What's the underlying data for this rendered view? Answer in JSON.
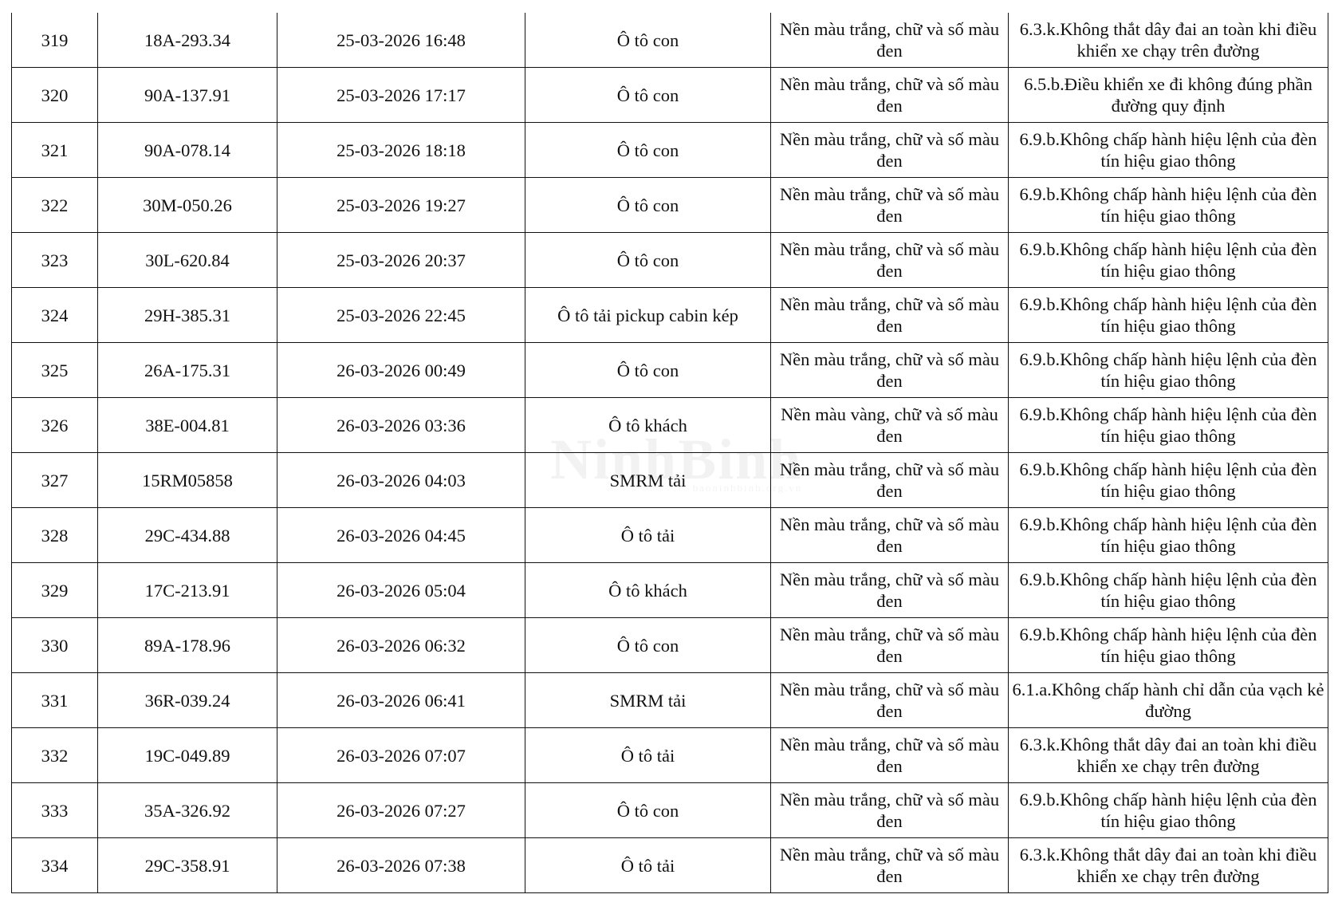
{
  "rows": [
    [
      "319",
      "18A-293.34",
      "25-03-2026 16:48",
      "Ô tô con",
      "Nền màu trắng, chữ và số màu đen",
      "6.3.k.Không thắt dây đai an toàn khi điều khiển xe chạy trên đường"
    ],
    [
      "320",
      "90A-137.91",
      "25-03-2026 17:17",
      "Ô tô con",
      "Nền màu trắng, chữ và số màu đen",
      "6.5.b.Điều khiển xe đi không đúng phần đường quy định"
    ],
    [
      "321",
      "90A-078.14",
      "25-03-2026 18:18",
      "Ô tô con",
      "Nền màu trắng, chữ và số màu đen",
      "6.9.b.Không chấp hành hiệu lệnh của đèn tín hiệu giao thông"
    ],
    [
      "322",
      "30M-050.26",
      "25-03-2026 19:27",
      "Ô tô con",
      "Nền màu trắng, chữ và số màu đen",
      "6.9.b.Không chấp hành hiệu lệnh của đèn tín hiệu giao thông"
    ],
    [
      "323",
      "30L-620.84",
      "25-03-2026 20:37",
      "Ô tô con",
      "Nền màu trắng, chữ và số màu đen",
      "6.9.b.Không chấp hành hiệu lệnh của đèn tín hiệu giao thông"
    ],
    [
      "324",
      "29H-385.31",
      "25-03-2026 22:45",
      "Ô tô tải pickup cabin kép",
      "Nền màu trắng, chữ và số màu đen",
      "6.9.b.Không chấp hành hiệu lệnh của đèn tín hiệu giao thông"
    ],
    [
      "325",
      "26A-175.31",
      "26-03-2026 00:49",
      "Ô tô con",
      "Nền màu trắng, chữ và số màu đen",
      "6.9.b.Không chấp hành hiệu lệnh của đèn tín hiệu giao thông"
    ],
    [
      "326",
      "38E-004.81",
      "26-03-2026 03:36",
      "Ô tô khách",
      "Nền màu vàng, chữ và số màu đen",
      "6.9.b.Không chấp hành hiệu lệnh của đèn tín hiệu giao thông"
    ],
    [
      "327",
      "15RM05858",
      "26-03-2026 04:03",
      "SMRM tải",
      "Nền màu trắng, chữ và số màu đen",
      "6.9.b.Không chấp hành hiệu lệnh của đèn tín hiệu giao thông"
    ],
    [
      "328",
      "29C-434.88",
      "26-03-2026 04:45",
      "Ô tô tải",
      "Nền màu trắng, chữ và số màu đen",
      "6.9.b.Không chấp hành hiệu lệnh của đèn tín hiệu giao thông"
    ],
    [
      "329",
      "17C-213.91",
      "26-03-2026 05:04",
      "Ô tô khách",
      "Nền màu trắng, chữ và số màu đen",
      "6.9.b.Không chấp hành hiệu lệnh của đèn tín hiệu giao thông"
    ],
    [
      "330",
      "89A-178.96",
      "26-03-2026 06:32",
      "Ô tô con",
      "Nền màu trắng, chữ và số màu đen",
      "6.9.b.Không chấp hành hiệu lệnh của đèn tín hiệu giao thông"
    ],
    [
      "331",
      "36R-039.24",
      "26-03-2026 06:41",
      "SMRM tải",
      "Nền màu trắng, chữ và số màu đen",
      "6.1.a.Không chấp hành chỉ dẫn của vạch kẻ đường"
    ],
    [
      "332",
      "19C-049.89",
      "26-03-2026 07:07",
      "Ô tô tải",
      "Nền màu trắng, chữ và số màu đen",
      "6.3.k.Không thắt dây đai an toàn khi điều khiển xe chạy trên đường"
    ],
    [
      "333",
      "35A-326.92",
      "26-03-2026 07:27",
      "Ô tô con",
      "Nền màu trắng, chữ và số màu đen",
      "6.9.b.Không chấp hành hiệu lệnh của đèn tín hiệu giao thông"
    ],
    [
      "334",
      "29C-358.91",
      "26-03-2026 07:38",
      "Ô tô tải",
      "Nền màu trắng, chữ và số màu đen",
      "6.3.k.Không thắt dây đai an toàn khi điều khiển xe chạy trên đường"
    ]
  ],
  "watermark": {
    "logo": "NinhBinh",
    "site": "baoninhbinh.org.vn"
  }
}
